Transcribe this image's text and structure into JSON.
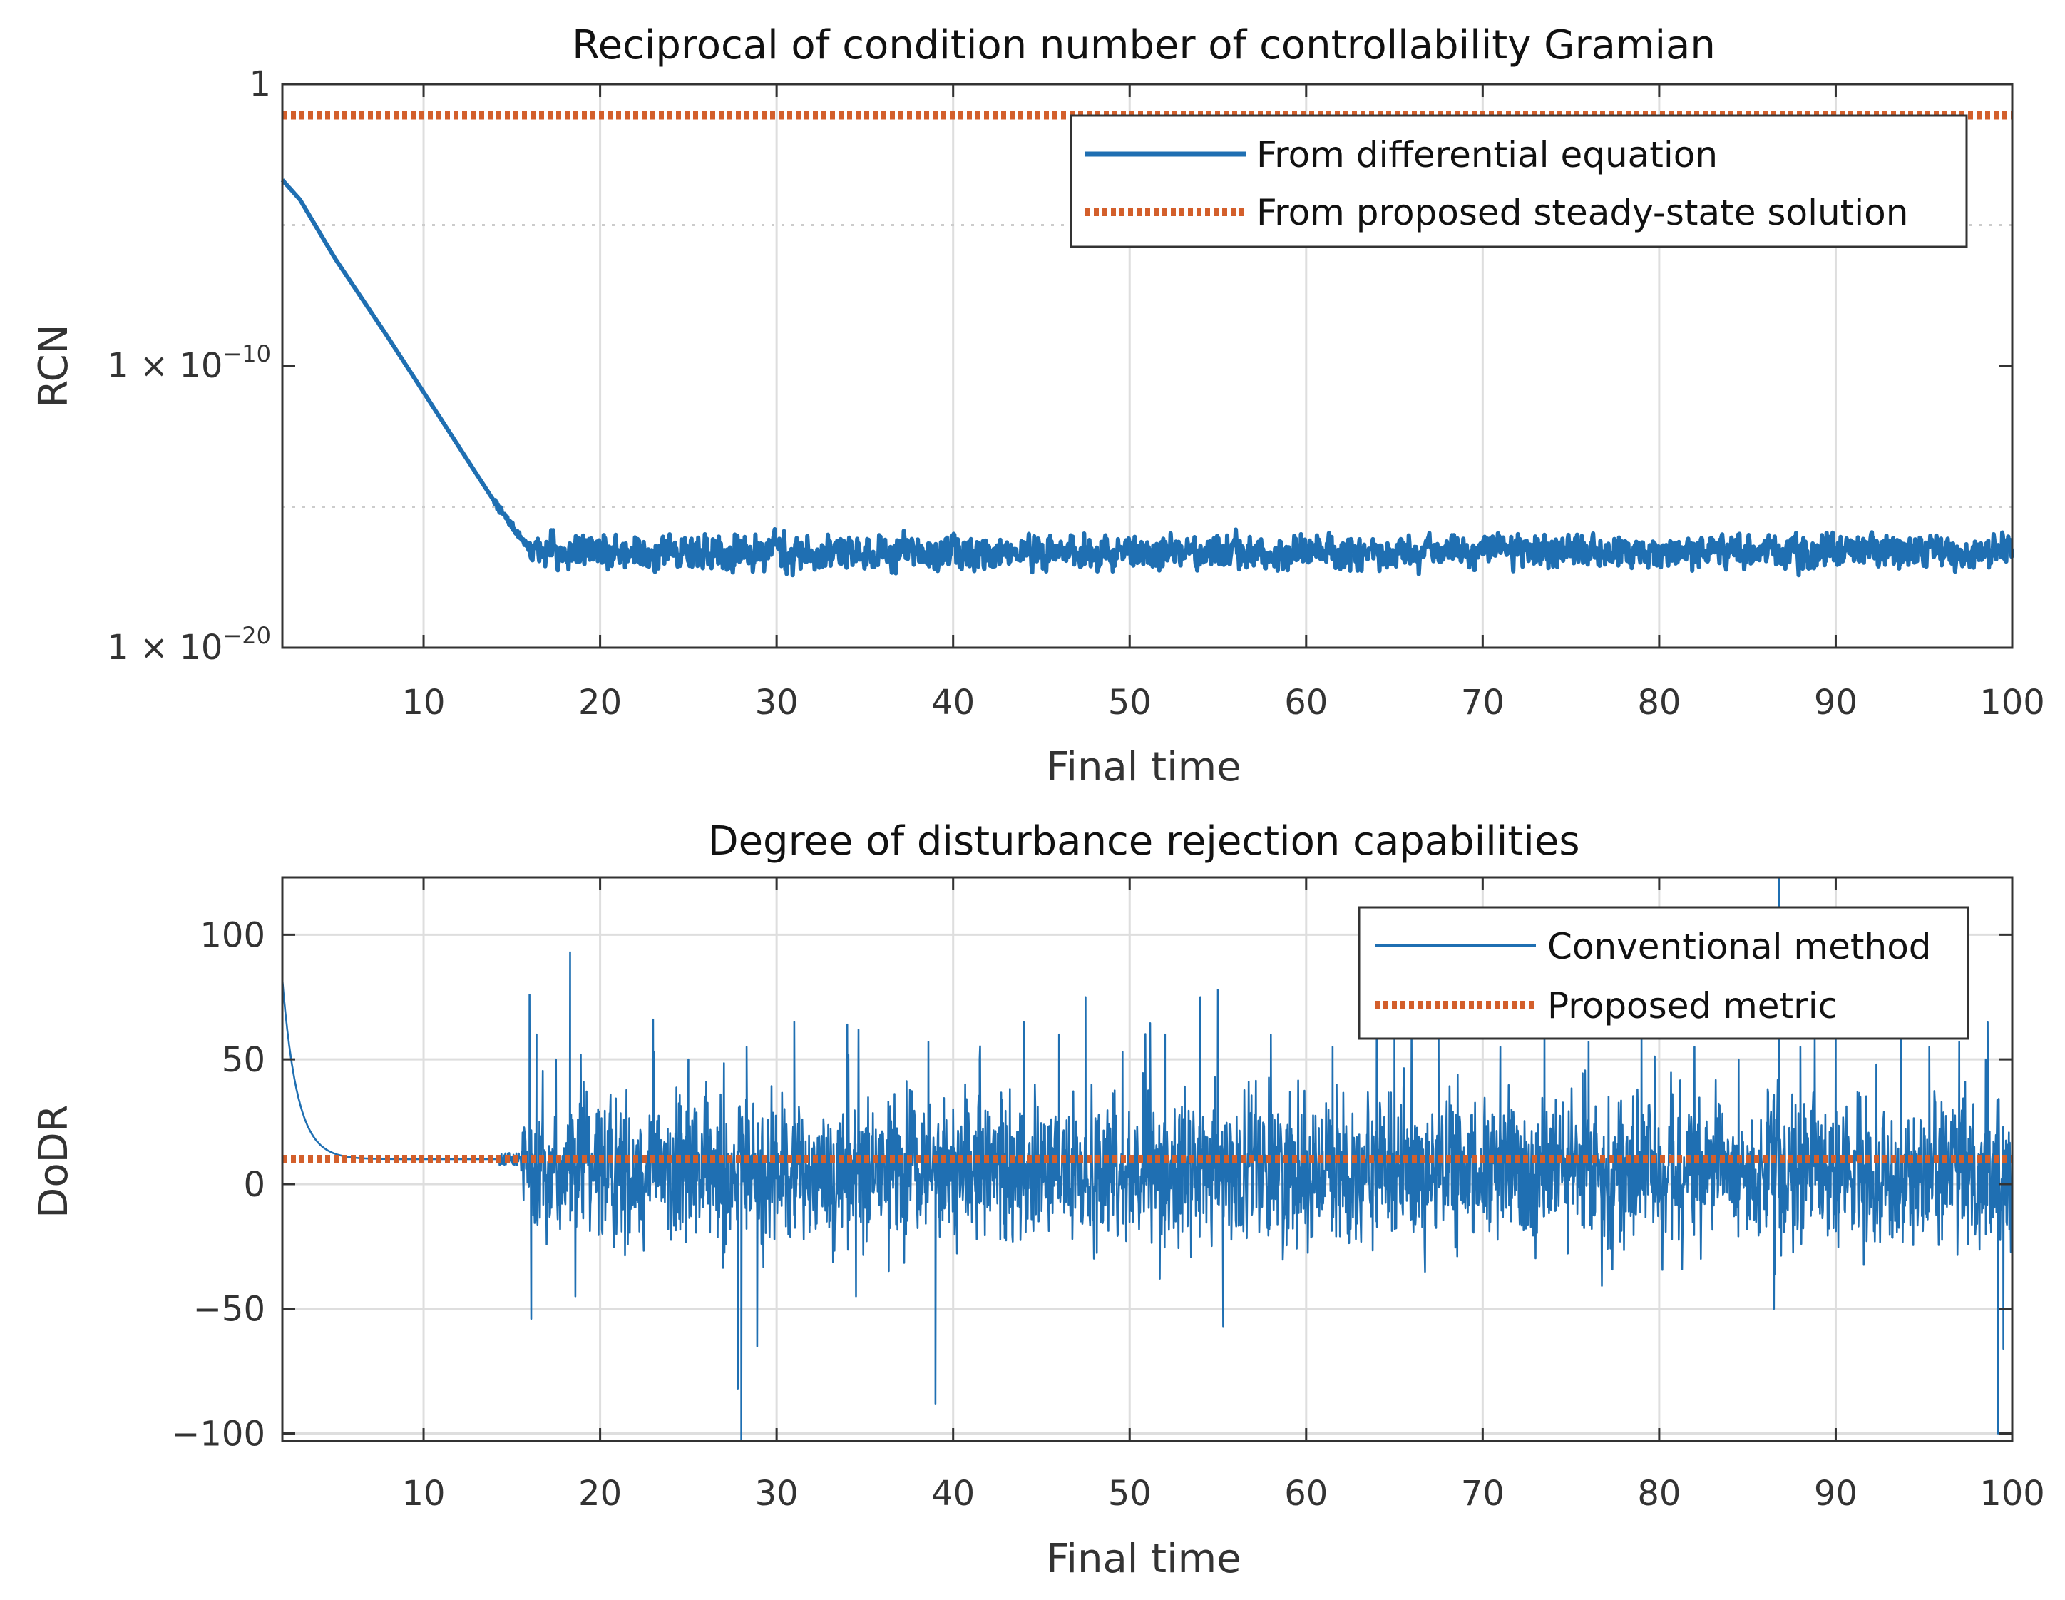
{
  "chart_data": [
    {
      "type": "line",
      "title": "Reciprocal of condition number of controllability Gramian",
      "xlabel": "Final time",
      "ylabel": "RCN",
      "xlim": [
        2,
        100
      ],
      "ylim_exponent": [
        -20,
        0
      ],
      "y_scale": "log",
      "x_ticks": [
        10,
        20,
        30,
        40,
        50,
        60,
        70,
        80,
        90,
        100
      ],
      "y_ticks": [
        {
          "exp": 0,
          "base": "1",
          "times": "",
          "sup": ""
        },
        {
          "exp": -10,
          "base": "1 × 10",
          "times": "",
          "sup": "−10"
        },
        {
          "exp": -20,
          "base": "1 × 10",
          "times": "",
          "sup": "−20"
        }
      ],
      "minor_grid_exponents": [
        -5,
        -15
      ],
      "grid": true,
      "legend_position": "top-right",
      "series": [
        {
          "name": "From differential equation",
          "color": "#1f6fb2",
          "style": "solid",
          "curve": {
            "decay_points": [
              [
                2,
                -3.4
              ],
              [
                3,
                -4.1
              ],
              [
                5,
                -6.2
              ],
              [
                8,
                -9.0
              ],
              [
                11,
                -11.9
              ],
              [
                14.2,
                -15.0
              ],
              [
                16,
                -16.5
              ]
            ],
            "noise_start": 16,
            "plateau_log10": -16.6,
            "noise_amplitude_log10": 0.6
          }
        },
        {
          "name": "From proposed steady-state solution",
          "color": "#d35f2b",
          "style": "dotted",
          "constant_log10": -1.1
        }
      ]
    },
    {
      "type": "line",
      "title": "Degree of disturbance rejection capabilities",
      "xlabel": "Final time",
      "ylabel": "DoDR",
      "xlim": [
        2,
        100
      ],
      "ylim": [
        -103,
        123
      ],
      "x_ticks": [
        10,
        20,
        30,
        40,
        50,
        60,
        70,
        80,
        90,
        100
      ],
      "y_ticks": [
        {
          "value": 100,
          "label": "100"
        },
        {
          "value": 50,
          "label": "50"
        },
        {
          "value": 0,
          "label": "0"
        },
        {
          "value": -50,
          "label": "−50"
        },
        {
          "value": -100,
          "label": "−100"
        }
      ],
      "grid": true,
      "legend_position": "top-right",
      "series": [
        {
          "name": "Conventional method",
          "color": "#1f6fb2",
          "style": "solid",
          "curve": {
            "initial_value": 82,
            "decay_tau": 0.85,
            "steady_value": 10,
            "noise_start": 15.5,
            "noise_center": 5,
            "noise_amplitude": 14,
            "spikes": [
              [
                16,
                76
              ],
              [
                16.1,
                -54
              ],
              [
                16.4,
                60
              ],
              [
                17.5,
                50
              ],
              [
                18.3,
                93
              ],
              [
                18.6,
                -45
              ],
              [
                23,
                66
              ],
              [
                25,
                50
              ],
              [
                27.8,
                -82
              ],
              [
                28,
                -103
              ],
              [
                28.3,
                55
              ],
              [
                28.9,
                -65
              ],
              [
                31,
                65
              ],
              [
                34,
                64
              ],
              [
                34.5,
                -45
              ],
              [
                38.6,
                57
              ],
              [
                39,
                -88
              ],
              [
                41.5,
                50
              ],
              [
                44,
                65
              ],
              [
                46,
                60
              ],
              [
                47.5,
                75
              ],
              [
                49.6,
                53
              ],
              [
                52,
                60
              ],
              [
                54,
                75
              ],
              [
                55,
                78
              ],
              [
                55.3,
                -57
              ],
              [
                58,
                60
              ],
              [
                61.5,
                55
              ],
              [
                64,
                77
              ],
              [
                65,
                65
              ],
              [
                67.5,
                60
              ],
              [
                71,
                55
              ],
              [
                73.5,
                65
              ],
              [
                76,
                57
              ],
              [
                79,
                60
              ],
              [
                82,
                55
              ],
              [
                84.5,
                50
              ],
              [
                86.8,
                123
              ],
              [
                86.5,
                -50
              ],
              [
                88,
                55
              ],
              [
                90,
                60
              ],
              [
                92.3,
                48
              ],
              [
                95.3,
                55
              ],
              [
                97,
                57
              ],
              [
                98.5,
                50
              ],
              [
                99.2,
                -100
              ],
              [
                99.5,
                -66
              ]
            ]
          }
        },
        {
          "name": "Proposed metric",
          "color": "#d35f2b",
          "style": "dotted",
          "constant_value": 10
        }
      ]
    }
  ]
}
